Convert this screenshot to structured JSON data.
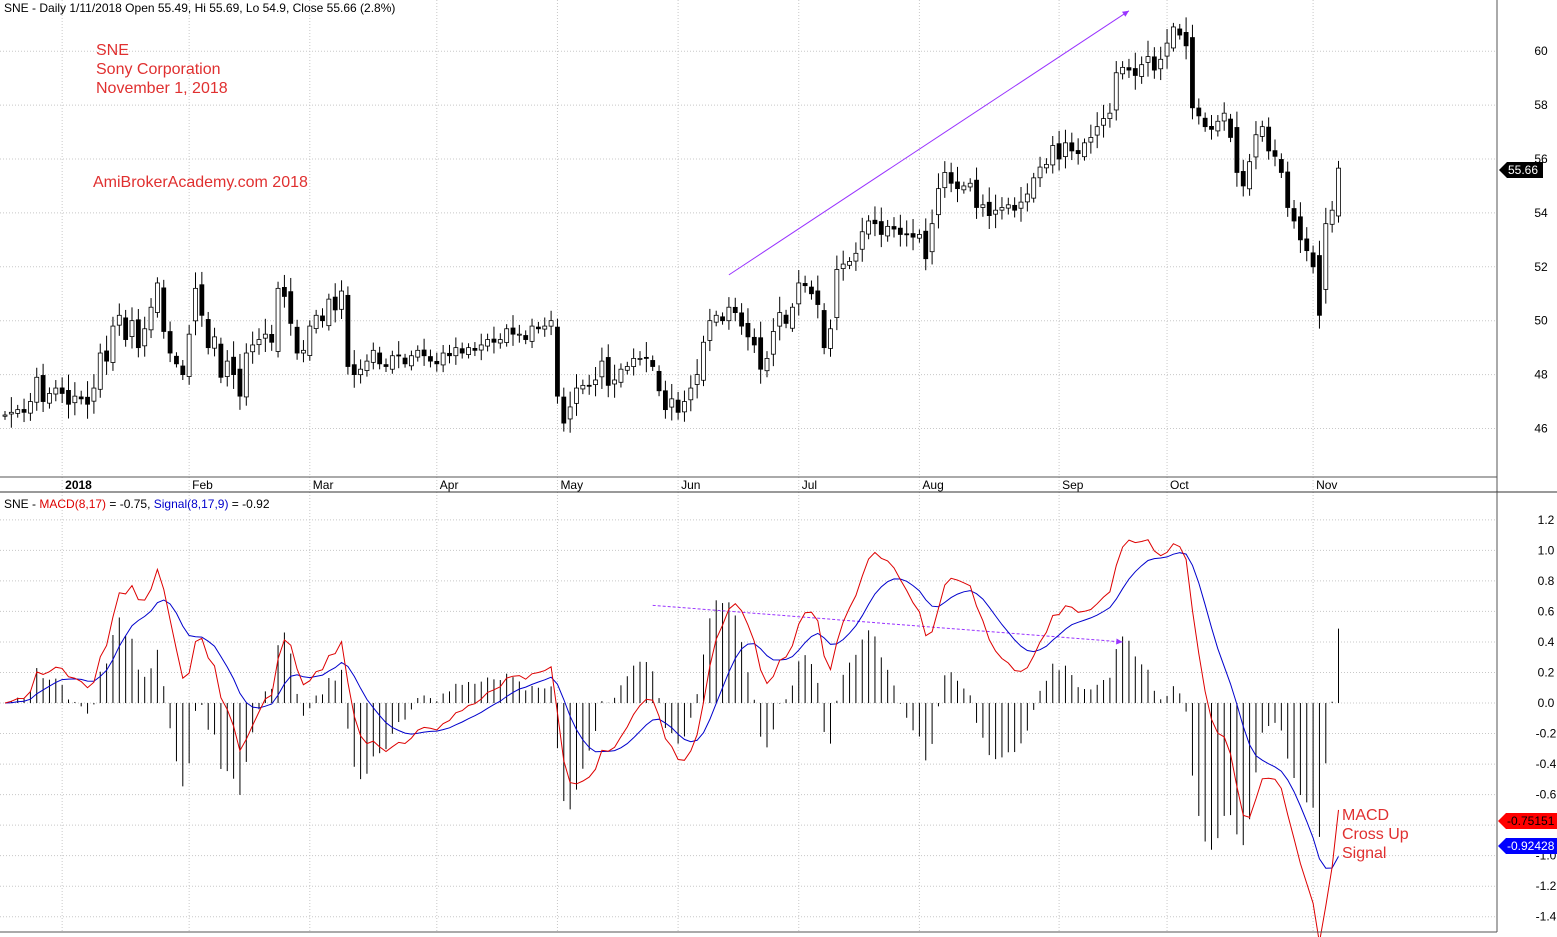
{
  "chart_data": [
    {
      "type": "candlestick",
      "header": {
        "symbol": "SNE",
        "summary": " - Daily 1/11/2018 Open 55.49, Hi 55.69, Lo 54.9, Close 55.66 (2.8%)"
      },
      "annotations": {
        "ticker": "SNE",
        "company": "Sony Corporation",
        "date": "November 1, 2018",
        "watermark": "AmiBrokerAcademy.com  2018"
      },
      "price_tag": "55.66",
      "y_ticks": [
        46,
        48,
        50,
        52,
        54,
        56,
        58,
        60
      ],
      "ylim": [
        44.2,
        61.9
      ],
      "x_ticks": [
        {
          "label": "2018",
          "i": 9,
          "bold": true
        },
        {
          "label": "Feb",
          "i": 29
        },
        {
          "label": "Mar",
          "i": 48
        },
        {
          "label": "Apr",
          "i": 68
        },
        {
          "label": "May",
          "i": 87
        },
        {
          "label": "Jun",
          "i": 106
        },
        {
          "label": "Jul",
          "i": 125
        },
        {
          "label": "Aug",
          "i": 144
        },
        {
          "label": "Sep",
          "i": 166
        },
        {
          "label": "Oct",
          "i": 183
        },
        {
          "label": "Nov",
          "i": 206
        }
      ],
      "trendline": {
        "from": {
          "i": 114,
          "price": 51.7
        },
        "to": {
          "i": 177,
          "price": 61.5
        },
        "color": "#9933ff"
      },
      "close": [
        46.5,
        46.6,
        46.7,
        46.6,
        47.0,
        47.9,
        47.0,
        47.3,
        47.5,
        47.3,
        46.9,
        47.2,
        47.1,
        46.9,
        47.5,
        48.8,
        48.5,
        49.8,
        50.2,
        49.3,
        50.0,
        49.0,
        49.7,
        50.5,
        51.4,
        49.6,
        48.8,
        48.4,
        48.0,
        49.5,
        51.2,
        50.2,
        49.0,
        49.4,
        47.9,
        48.5,
        48.0,
        47.2,
        48.8,
        49.1,
        49.3,
        49.5,
        49.2,
        51.2,
        50.9,
        49.9,
        48.8,
        48.9,
        49.8,
        50.2,
        50.0,
        50.8,
        50.4,
        51.1,
        48.3,
        48.0,
        48.2,
        48.5,
        48.9,
        48.4,
        48.3,
        48.7,
        48.7,
        48.4,
        48.7,
        48.9,
        48.7,
        48.5,
        48.4,
        48.8,
        48.7,
        49.0,
        48.8,
        49.0,
        48.9,
        49.1,
        49.3,
        49.2,
        49.3,
        49.7,
        49.5,
        49.5,
        49.3,
        49.8,
        49.7,
        49.8,
        50.0,
        47.2,
        46.2,
        46.8,
        47.5,
        47.6,
        47.6,
        47.8,
        48.5,
        47.6,
        47.8,
        48.2,
        48.3,
        48.6,
        48.6,
        48.6,
        48.3,
        47.4,
        46.7,
        47.1,
        46.6,
        47.0,
        47.5,
        48.0,
        49.2,
        50.0,
        50.2,
        50.0,
        50.5,
        50.3,
        49.8,
        49.4,
        49.1,
        48.2,
        48.6,
        49.6,
        50.3,
        49.9,
        50.5,
        51.4,
        51.3,
        51.0,
        50.6,
        49.0,
        49.7,
        51.9,
        52.1,
        52.2,
        52.5,
        53.3,
        53.7,
        53.6,
        53.2,
        53.5,
        53.4,
        53.2,
        53.2,
        53.1,
        53.2,
        52.3,
        53.6,
        54.9,
        55.5,
        55.1,
        54.9,
        55.0,
        55.1,
        54.2,
        54.3,
        53.9,
        54.1,
        54.2,
        54.3,
        54.1,
        54.4,
        54.7,
        55.3,
        55.7,
        55.8,
        56.5,
        56.0,
        56.6,
        56.3,
        56.2,
        56.6,
        56.8,
        57.2,
        57.5,
        57.7,
        59.2,
        59.4,
        59.3,
        59.1,
        59.5,
        59.8,
        59.3,
        59.7,
        60.3,
        60.9,
        60.6,
        60.2,
        57.9,
        57.6,
        57.2,
        57.1,
        57.4,
        57.7,
        56.8,
        55.5,
        55.0,
        55.9,
        56.9,
        57.2,
        56.3,
        56.1,
        55.5,
        54.2,
        53.7,
        53.0,
        52.6,
        52.0,
        50.2,
        53.6,
        54.1,
        55.66
      ]
    },
    {
      "type": "line",
      "header": {
        "symbol": "SNE",
        "macd_label": "MACD(8,17)",
        "macd_value": " = -0.75, ",
        "signal_label": "Signal(8,17,9)",
        "signal_value": " = -0.92"
      },
      "series": [
        {
          "name": "MACD(8,17)",
          "color": "#dd0000",
          "last": "-0.75151"
        },
        {
          "name": "Signal(8,17,9)",
          "color": "#0000cc",
          "last": "-0.92428"
        }
      ],
      "y_ticks": [
        1.2,
        1.0,
        0.8,
        0.6,
        0.4,
        0.2,
        0.0,
        -0.2,
        -0.4,
        -0.6,
        -0.8,
        -1.0,
        -1.2,
        -1.4
      ],
      "ylim": [
        -1.5,
        1.33
      ],
      "annotation": {
        "line1": "MACD",
        "line2": "Cross Up",
        "line3": "Signal"
      },
      "trendline": {
        "from": {
          "i": 102,
          "v": 0.64
        },
        "to": {
          "i": 176,
          "v": 0.4
        },
        "color": "#9933ff"
      }
    }
  ]
}
